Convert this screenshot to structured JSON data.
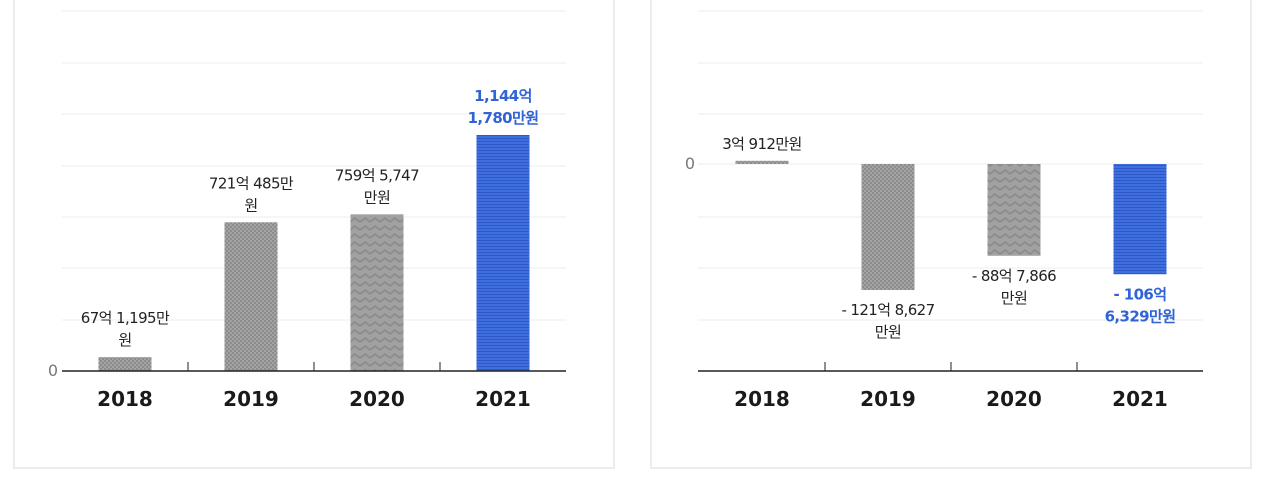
{
  "colors": {
    "gray_bar": "#9a9a9a",
    "blue_bar": "#3563d8",
    "highlight_text": "#2f63d6"
  },
  "chart_data": [
    {
      "type": "bar",
      "categories": [
        "2018",
        "2019",
        "2020",
        "2021"
      ],
      "values": [
        67.1195,
        721.0485,
        759.5747,
        1144.178
      ],
      "units": "억 원",
      "ylim": [
        0,
        1400
      ],
      "zero_label": "0",
      "value_labels": [
        [
          "67억 1,195만",
          "원"
        ],
        [
          "721억 485만",
          "원"
        ],
        [
          "759억 5,747",
          "만원"
        ],
        [
          "1,144억",
          "1,780만원"
        ]
      ],
      "highlight_index": 3,
      "grid": true
    },
    {
      "type": "bar",
      "categories": [
        "2018",
        "2019",
        "2020",
        "2021"
      ],
      "values": [
        3.0912,
        -121.8627,
        -88.7866,
        -106.6329
      ],
      "units": "억 원",
      "ylim": [
        -200,
        150
      ],
      "zero_label": "0",
      "value_labels": [
        [
          "3억 912만원"
        ],
        [
          "- 121억 8,627",
          "만원"
        ],
        [
          "- 88억 7,866",
          "만원"
        ],
        [
          "- 106억",
          "6,329만원"
        ]
      ],
      "highlight_index": 3,
      "grid": true
    }
  ]
}
